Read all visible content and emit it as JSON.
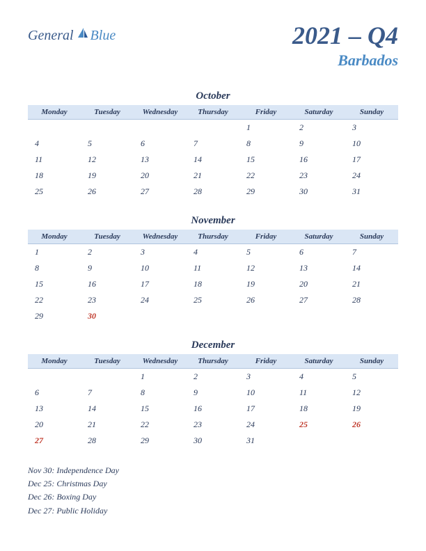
{
  "logo": {
    "part1": "General",
    "part2": "Blue"
  },
  "title": {
    "main": "2021 – Q4",
    "sub": "Barbados"
  },
  "weekdays": [
    "Monday",
    "Tuesday",
    "Wednesday",
    "Thursday",
    "Friday",
    "Saturday",
    "Sunday"
  ],
  "months": [
    {
      "name": "October",
      "weeks": [
        [
          "",
          "",
          "",
          "",
          "1",
          "2",
          "3"
        ],
        [
          "4",
          "5",
          "6",
          "7",
          "8",
          "9",
          "10"
        ],
        [
          "11",
          "12",
          "13",
          "14",
          "15",
          "16",
          "17"
        ],
        [
          "18",
          "19",
          "20",
          "21",
          "22",
          "23",
          "24"
        ],
        [
          "25",
          "26",
          "27",
          "28",
          "29",
          "30",
          "31"
        ]
      ],
      "holidays": []
    },
    {
      "name": "November",
      "weeks": [
        [
          "1",
          "2",
          "3",
          "4",
          "5",
          "6",
          "7"
        ],
        [
          "8",
          "9",
          "10",
          "11",
          "12",
          "13",
          "14"
        ],
        [
          "15",
          "16",
          "17",
          "18",
          "19",
          "20",
          "21"
        ],
        [
          "22",
          "23",
          "24",
          "25",
          "26",
          "27",
          "28"
        ],
        [
          "29",
          "30",
          "",
          "",
          "",
          "",
          ""
        ]
      ],
      "holidays": [
        "30"
      ]
    },
    {
      "name": "December",
      "weeks": [
        [
          "",
          "",
          "1",
          "2",
          "3",
          "4",
          "5"
        ],
        [
          "6",
          "7",
          "8",
          "9",
          "10",
          "11",
          "12"
        ],
        [
          "13",
          "14",
          "15",
          "16",
          "17",
          "18",
          "19"
        ],
        [
          "20",
          "21",
          "22",
          "23",
          "24",
          "25",
          "26"
        ],
        [
          "27",
          "28",
          "29",
          "30",
          "31",
          "",
          ""
        ]
      ],
      "holidays": [
        "25",
        "26",
        "27"
      ]
    }
  ],
  "holiday_list": [
    "Nov 30: Independence Day",
    "Dec 25: Christmas Day",
    "Dec 26: Boxing Day",
    "Dec 27: Public Holiday"
  ],
  "colors": {
    "header_bg": "#dae6f5",
    "text_dark": "#2a3a5a",
    "text_blue": "#4a8ac4",
    "holiday": "#c0392b"
  }
}
